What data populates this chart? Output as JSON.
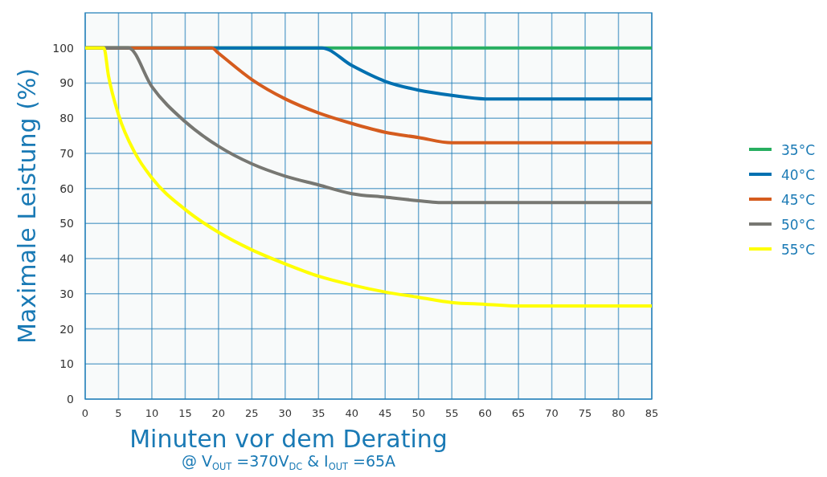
{
  "chart_data": {
    "type": "line",
    "xlabel": "Minuten vor dem Derating",
    "ylabel": "Maximale Leistung (%)",
    "annotations": [
      "@ V$_{OUT}$=370V$_{DC}$ & I$_{OUT}$=65A"
    ],
    "xlim": [
      0,
      85
    ],
    "xticks": [
      0,
      5,
      10,
      15,
      20,
      25,
      30,
      35,
      40,
      45,
      50,
      55,
      60,
      65,
      70,
      75,
      80,
      85
    ],
    "ylim": [
      0,
      110
    ],
    "yticks": [
      0,
      10,
      20,
      30,
      40,
      50,
      60,
      70,
      80,
      90,
      100
    ],
    "grid": true,
    "legend": "right",
    "marker": "none",
    "line_style": "solid",
    "series": [
      {
        "name": "35°C",
        "color": "#27ae60",
        "x": [
          0,
          85
        ],
        "values": [
          100,
          100
        ]
      },
      {
        "name": "40°C",
        "color": "#0070b0",
        "x": [
          0,
          35.5,
          40,
          45,
          50,
          55,
          60,
          85
        ],
        "values": [
          100,
          100,
          95,
          90.5,
          88,
          86.5,
          85.5,
          85.5
        ]
      },
      {
        "name": "45°C",
        "color": "#d55c1e",
        "x": [
          0,
          19,
          20,
          25,
          30,
          35,
          40,
          45,
          50,
          55,
          85
        ],
        "values": [
          100,
          100,
          98.5,
          91,
          85.5,
          81.5,
          78.5,
          76,
          74.5,
          73,
          73
        ]
      },
      {
        "name": "50°C",
        "color": "#777772",
        "x": [
          0,
          6.5,
          10,
          15,
          20,
          25,
          30,
          35,
          40,
          45,
          50,
          53,
          85
        ],
        "values": [
          100,
          100,
          89,
          79,
          72,
          67,
          63.5,
          61,
          58.5,
          57.5,
          56.5,
          56,
          56
        ]
      },
      {
        "name": "55°C",
        "color": "#ffff00",
        "x": [
          0,
          2.8,
          3.5,
          5,
          7.5,
          10,
          15,
          20,
          25,
          30,
          35,
          40,
          45,
          50,
          55,
          60,
          65,
          85
        ],
        "values": [
          100,
          100,
          92,
          81,
          70,
          63,
          54,
          47.5,
          42.5,
          38.5,
          35,
          32.5,
          30.5,
          29,
          27.5,
          27,
          26.5,
          26.5
        ]
      }
    ]
  }
}
